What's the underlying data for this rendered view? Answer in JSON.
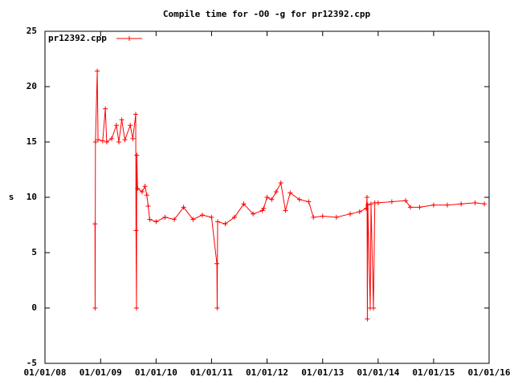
{
  "chart_data": {
    "type": "line",
    "title": "Compile time for -O0 -g for pr12392.cpp",
    "y_label": "s",
    "legend": "top-left",
    "x": [
      "2008-11-25",
      "2008-11-26",
      "2008-11-28",
      "2008-12-10",
      "2008-12-15",
      "2009-01-15",
      "2009-02-01",
      "2009-02-10",
      "2009-03-15",
      "2009-04-15",
      "2009-05-01",
      "2009-05-20",
      "2009-06-10",
      "2009-07-15",
      "2009-08-01",
      "2009-08-20",
      "2009-08-22",
      "2009-08-25",
      "2009-08-27",
      "2009-09-01",
      "2009-10-01",
      "2009-10-20",
      "2009-11-01",
      "2009-11-10",
      "2009-11-20",
      "2010-01-01",
      "2010-03-01",
      "2010-05-01",
      "2010-07-01",
      "2010-09-01",
      "2010-11-01",
      "2011-01-01",
      "2011-02-05",
      "2011-02-07",
      "2011-02-10",
      "2011-04-01",
      "2011-06-01",
      "2011-08-01",
      "2011-10-01",
      "2011-12-01",
      "2011-12-10",
      "2012-01-01",
      "2012-02-01",
      "2012-03-01",
      "2012-04-01",
      "2012-05-01",
      "2012-06-01",
      "2012-08-01",
      "2012-10-01",
      "2012-11-01",
      "2013-01-01",
      "2013-04-01",
      "2013-07-01",
      "2013-09-01",
      "2013-10-15",
      "2013-10-20",
      "2013-10-22",
      "2013-10-25",
      "2013-11-10",
      "2013-11-15",
      "2013-12-01",
      "2013-12-10",
      "2014-01-01",
      "2014-04-01",
      "2014-07-01",
      "2014-08-01",
      "2014-10-01",
      "2015-01-01",
      "2015-04-01",
      "2015-07-01",
      "2015-10-01",
      "2015-12-01"
    ],
    "series": [
      {
        "name": "pr12392.cpp",
        "color": "#ff0000",
        "values": [
          7.6,
          0,
          15,
          21.4,
          15.2,
          15.1,
          18,
          15,
          15.3,
          16.5,
          15,
          17,
          15.2,
          16.5,
          15.3,
          17.5,
          7,
          0,
          13.8,
          10.8,
          10.5,
          11,
          10.2,
          9.2,
          8,
          7.8,
          8.2,
          8.0,
          9.1,
          8,
          8.4,
          8.2,
          4,
          0,
          7.8,
          7.6,
          8.2,
          9.4,
          8.5,
          8.8,
          9,
          10,
          9.8,
          10.5,
          11.3,
          8.8,
          10.4,
          9.8,
          9.6,
          8.2,
          8.3,
          8.2,
          8.5,
          8.7,
          9.0,
          10,
          -1,
          9.3,
          0,
          9.4,
          0,
          9.5,
          9.5,
          9.6,
          9.7,
          9.1,
          9.1,
          9.3,
          9.3,
          9.4,
          9.5,
          9.4
        ]
      }
    ],
    "xlim": [
      "2008-01-01",
      "2016-01-01"
    ],
    "xticks": [
      {
        "value": "2008-01-01",
        "label": "01/01/08"
      },
      {
        "value": "2009-01-01",
        "label": "01/01/09"
      },
      {
        "value": "2010-01-01",
        "label": "01/01/10"
      },
      {
        "value": "2011-01-01",
        "label": "01/01/11"
      },
      {
        "value": "2012-01-01",
        "label": "01/01/12"
      },
      {
        "value": "2013-01-01",
        "label": "01/01/13"
      },
      {
        "value": "2014-01-01",
        "label": "01/01/14"
      },
      {
        "value": "2015-01-01",
        "label": "01/01/15"
      },
      {
        "value": "2016-01-01",
        "label": "01/01/16"
      }
    ],
    "ylim": [
      -5,
      25
    ],
    "yticks": [
      -5,
      0,
      5,
      10,
      15,
      20,
      25
    ]
  }
}
